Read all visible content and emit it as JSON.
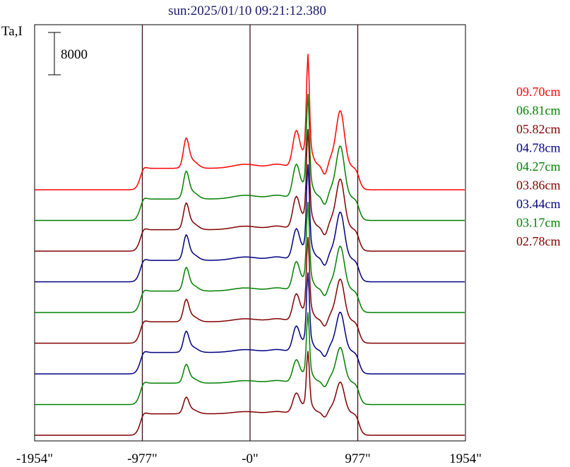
{
  "chart_data": {
    "type": "line",
    "title": "sun:2025/01/10 09:21:12.380",
    "ylabel": "Ta,I",
    "scale_bar_label": "8000",
    "scale_bar_value": 8000,
    "xlim": [
      -1954,
      1954
    ],
    "x_ticks": [
      -1954,
      -977,
      0,
      977,
      1954
    ],
    "x_tick_labels": [
      "-1954\"",
      "-977\"",
      "-0\"",
      "977\"",
      "1954\""
    ],
    "vertical_gridlines_at": [
      -977,
      0,
      977
    ],
    "series": [
      {
        "name": "09.70cm",
        "color": "#ff0000",
        "offset": 8,
        "amplitude": 1.0
      },
      {
        "name": "06.81cm",
        "color": "#008000",
        "offset": 7,
        "amplitude": 0.92
      },
      {
        "name": "05.82cm",
        "color": "#800000",
        "offset": 6,
        "amplitude": 0.88
      },
      {
        "name": "04.78cm",
        "color": "#000080",
        "offset": 5,
        "amplitude": 0.84
      },
      {
        "name": "04.27cm",
        "color": "#008000",
        "offset": 4,
        "amplitude": 0.78
      },
      {
        "name": "03.86cm",
        "color": "#800000",
        "offset": 3,
        "amplitude": 0.74
      },
      {
        "name": "03.44cm",
        "color": "#000080",
        "offset": 2,
        "amplitude": 0.7
      },
      {
        "name": "03.17cm",
        "color": "#008000",
        "offset": 1,
        "amplitude": 0.62
      },
      {
        "name": "02.78cm",
        "color": "#800000",
        "offset": 0,
        "amplitude": 0.55
      }
    ]
  }
}
